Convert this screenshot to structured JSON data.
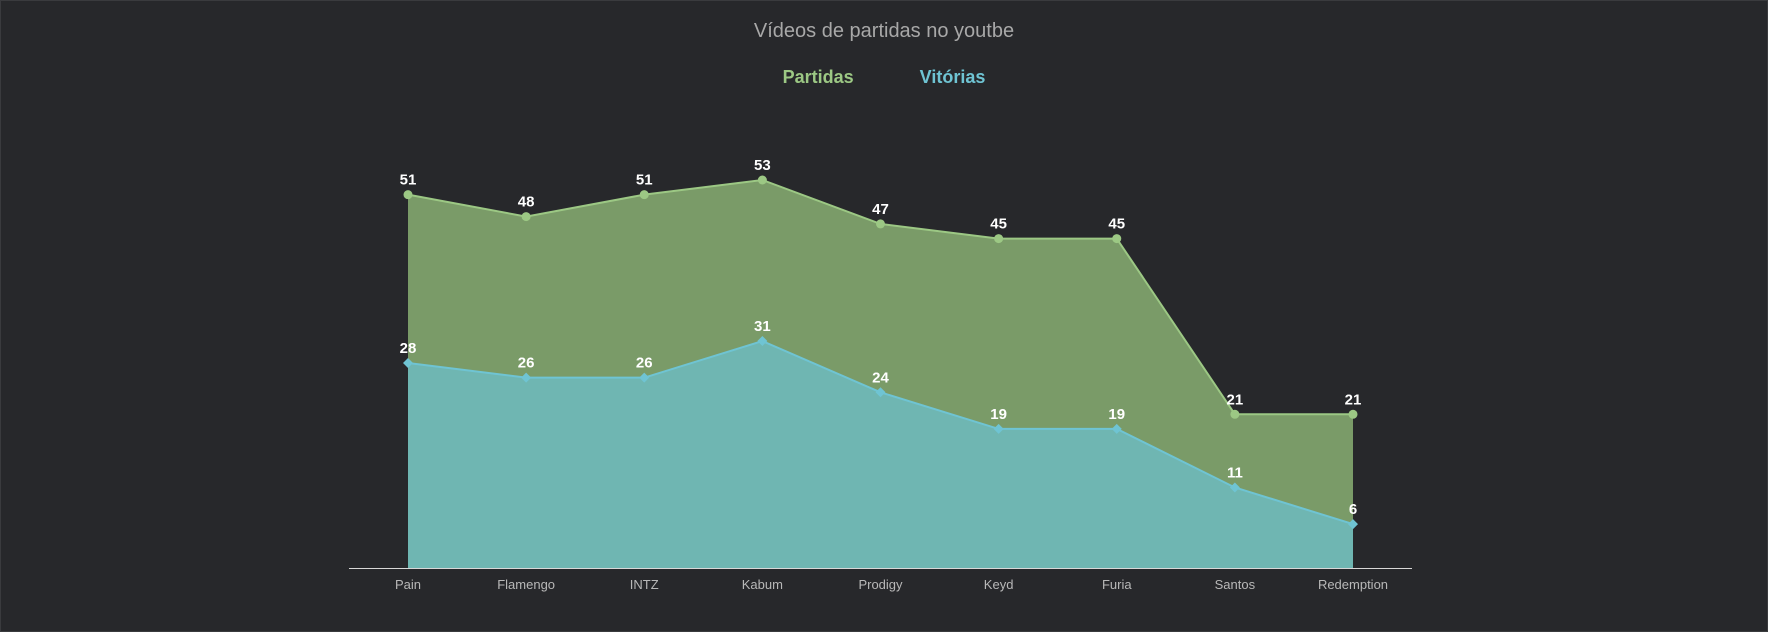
{
  "chart_data": {
    "type": "area",
    "title": "Vídeos de partidas no youtbe",
    "categories": [
      "Pain",
      "Flamengo",
      "INTZ",
      "Kabum",
      "Prodigy",
      "Keyd",
      "Furia",
      "Santos",
      "Redemption"
    ],
    "series": [
      {
        "name": "Partidas",
        "values": [
          51,
          48,
          51,
          53,
          47,
          45,
          45,
          21,
          21
        ],
        "color": "#7a9b68",
        "line_color": "#9cc884",
        "marker": "circle"
      },
      {
        "name": "Vitórias",
        "values": [
          28,
          26,
          26,
          31,
          24,
          19,
          19,
          11,
          6
        ],
        "color": "#6fb6b2",
        "line_color": "#6fc4d3",
        "marker": "diamond"
      }
    ],
    "ylim": [
      0,
      53
    ],
    "grid": false,
    "legend_position": "top-center",
    "data_labels": true,
    "axis_color": "#d8d8d8",
    "tick_label_color": "#b8b8b8",
    "data_label_color": "#ffffff",
    "legend_colors": [
      "#9cc884",
      "#6fc4d3"
    ]
  }
}
